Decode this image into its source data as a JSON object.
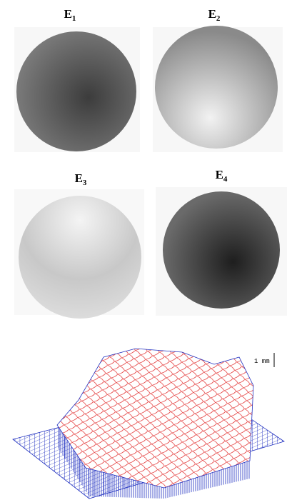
{
  "panels": [
    {
      "letter": "E",
      "subscript": "1"
    },
    {
      "letter": "E",
      "subscript": "2"
    },
    {
      "letter": "E",
      "subscript": "3"
    },
    {
      "letter": "E",
      "subscript": "4"
    }
  ],
  "surface_plot": {
    "scale_label": "1 mm"
  }
}
